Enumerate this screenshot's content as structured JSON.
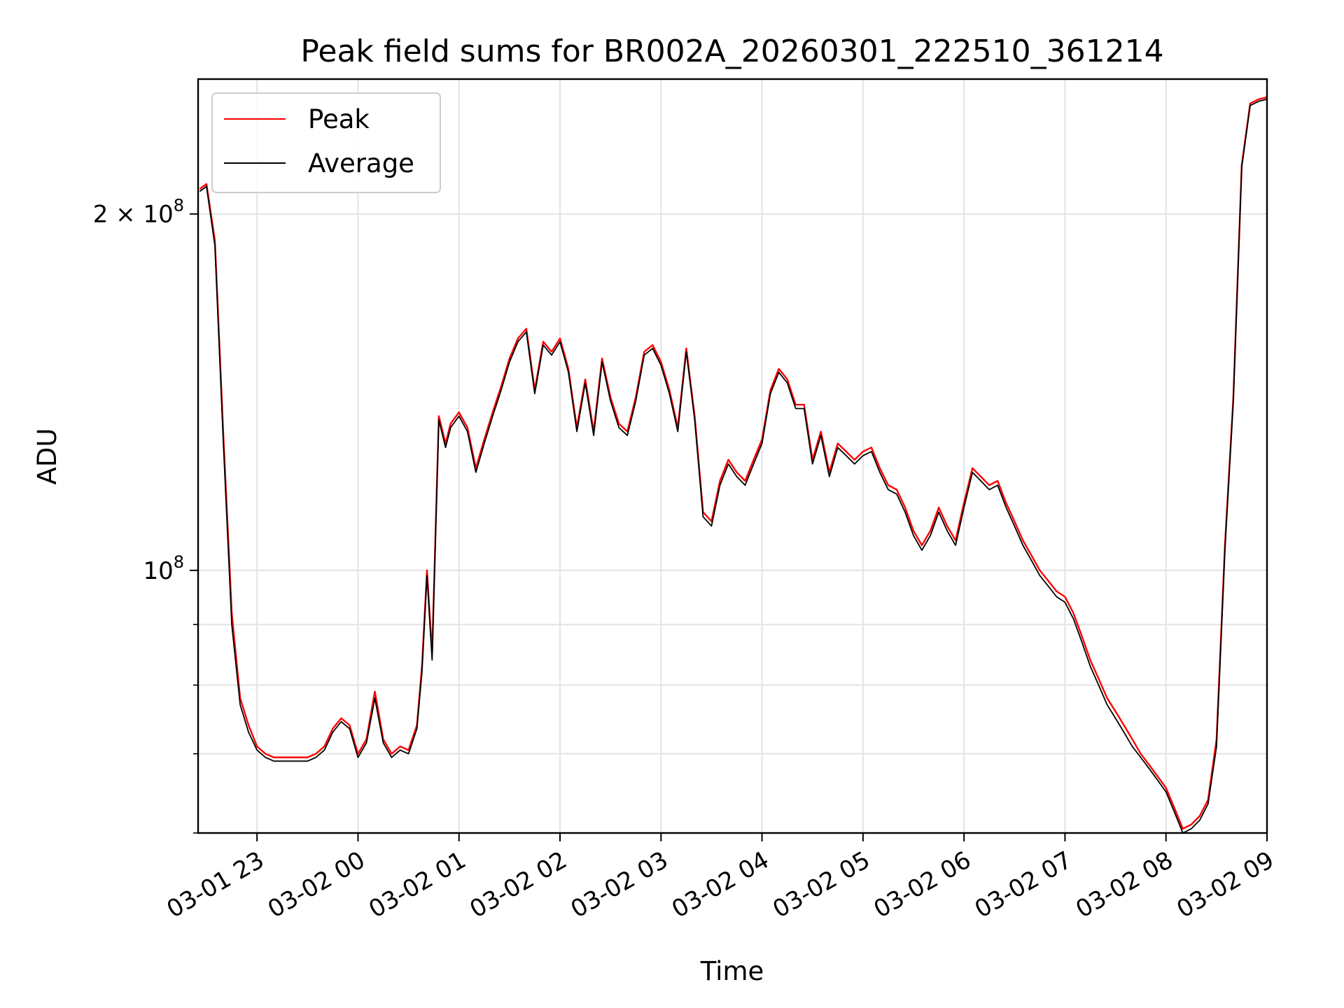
{
  "chart_data": {
    "type": "line",
    "title": "Peak field sums for BR002A_20260301_222510_361214",
    "xlabel": "Time",
    "ylabel": "ADU",
    "y_scale": "log",
    "ylim": [
      60000000,
      260000000
    ],
    "xlim": [
      "2026-03-01 22:25",
      "2026-03-02 09:00"
    ],
    "x_ticks": [
      {
        "x": "2026-03-01 23:00",
        "label": "03-01 23"
      },
      {
        "x": "2026-03-02 00:00",
        "label": "03-02 00"
      },
      {
        "x": "2026-03-02 01:00",
        "label": "03-02 01"
      },
      {
        "x": "2026-03-02 02:00",
        "label": "03-02 02"
      },
      {
        "x": "2026-03-02 03:00",
        "label": "03-02 03"
      },
      {
        "x": "2026-03-02 04:00",
        "label": "03-02 04"
      },
      {
        "x": "2026-03-02 05:00",
        "label": "03-02 05"
      },
      {
        "x": "2026-03-02 06:00",
        "label": "03-02 06"
      },
      {
        "x": "2026-03-02 07:00",
        "label": "03-02 07"
      },
      {
        "x": "2026-03-02 08:00",
        "label": "03-02 08"
      },
      {
        "x": "2026-03-02 09:00",
        "label": "03-02 09"
      }
    ],
    "y_ticks_major": [
      {
        "value": 100000000,
        "base": "10",
        "exp": "8",
        "mantissa": ""
      },
      {
        "value": 200000000,
        "base": "10",
        "exp": "8",
        "mantissa": "2 × "
      }
    ],
    "y_ticks_minor": [
      60000000,
      70000000,
      80000000,
      90000000
    ],
    "grid": true,
    "legend": {
      "position": "upper-left"
    },
    "series": [
      {
        "name": "Peak",
        "color": "#ff0000",
        "x": [
          "2026-03-01 22:26",
          "2026-03-01 22:30",
          "2026-03-01 22:35",
          "2026-03-01 22:40",
          "2026-03-01 22:45",
          "2026-03-01 22:50",
          "2026-03-01 22:55",
          "2026-03-01 23:00",
          "2026-03-01 23:05",
          "2026-03-01 23:10",
          "2026-03-01 23:15",
          "2026-03-01 23:20",
          "2026-03-01 23:25",
          "2026-03-01 23:30",
          "2026-03-01 23:35",
          "2026-03-01 23:40",
          "2026-03-01 23:45",
          "2026-03-01 23:50",
          "2026-03-01 23:55",
          "2026-03-02 00:00",
          "2026-03-02 00:05",
          "2026-03-02 00:10",
          "2026-03-02 00:15",
          "2026-03-02 00:20",
          "2026-03-02 00:25",
          "2026-03-02 00:30",
          "2026-03-02 00:35",
          "2026-03-02 00:38",
          "2026-03-02 00:41",
          "2026-03-02 00:44",
          "2026-03-02 00:48",
          "2026-03-02 00:52",
          "2026-03-02 00:55",
          "2026-03-02 01:00",
          "2026-03-02 01:05",
          "2026-03-02 01:10",
          "2026-03-02 01:15",
          "2026-03-02 01:20",
          "2026-03-02 01:25",
          "2026-03-02 01:30",
          "2026-03-02 01:35",
          "2026-03-02 01:40",
          "2026-03-02 01:45",
          "2026-03-02 01:50",
          "2026-03-02 01:55",
          "2026-03-02 02:00",
          "2026-03-02 02:05",
          "2026-03-02 02:10",
          "2026-03-02 02:15",
          "2026-03-02 02:20",
          "2026-03-02 02:25",
          "2026-03-02 02:30",
          "2026-03-02 02:35",
          "2026-03-02 02:40",
          "2026-03-02 02:45",
          "2026-03-02 02:50",
          "2026-03-02 02:55",
          "2026-03-02 03:00",
          "2026-03-02 03:05",
          "2026-03-02 03:10",
          "2026-03-02 03:15",
          "2026-03-02 03:20",
          "2026-03-02 03:25",
          "2026-03-02 03:30",
          "2026-03-02 03:35",
          "2026-03-02 03:40",
          "2026-03-02 03:45",
          "2026-03-02 03:50",
          "2026-03-02 03:55",
          "2026-03-02 04:00",
          "2026-03-02 04:05",
          "2026-03-02 04:10",
          "2026-03-02 04:15",
          "2026-03-02 04:20",
          "2026-03-02 04:25",
          "2026-03-02 04:30",
          "2026-03-02 04:35",
          "2026-03-02 04:40",
          "2026-03-02 04:45",
          "2026-03-02 04:50",
          "2026-03-02 04:55",
          "2026-03-02 05:00",
          "2026-03-02 05:05",
          "2026-03-02 05:10",
          "2026-03-02 05:15",
          "2026-03-02 05:20",
          "2026-03-02 05:25",
          "2026-03-02 05:30",
          "2026-03-02 05:35",
          "2026-03-02 05:40",
          "2026-03-02 05:45",
          "2026-03-02 05:50",
          "2026-03-02 05:55",
          "2026-03-02 06:00",
          "2026-03-02 06:05",
          "2026-03-02 06:10",
          "2026-03-02 06:15",
          "2026-03-02 06:20",
          "2026-03-02 06:25",
          "2026-03-02 06:30",
          "2026-03-02 06:35",
          "2026-03-02 06:40",
          "2026-03-02 06:45",
          "2026-03-02 06:50",
          "2026-03-02 06:55",
          "2026-03-02 07:00",
          "2026-03-02 07:05",
          "2026-03-02 07:10",
          "2026-03-02 07:15",
          "2026-03-02 07:20",
          "2026-03-02 07:25",
          "2026-03-02 07:30",
          "2026-03-02 07:35",
          "2026-03-02 07:40",
          "2026-03-02 07:45",
          "2026-03-02 07:50",
          "2026-03-02 07:55",
          "2026-03-02 08:00",
          "2026-03-02 08:05",
          "2026-03-02 08:10",
          "2026-03-02 08:15",
          "2026-03-02 08:20",
          "2026-03-02 08:25",
          "2026-03-02 08:30",
          "2026-03-02 08:35",
          "2026-03-02 08:40",
          "2026-03-02 08:45",
          "2026-03-02 08:50",
          "2026-03-02 08:55",
          "2026-03-02 09:00"
        ],
        "values": [
          210000000,
          212000000,
          190000000,
          130000000,
          92000000,
          78000000,
          74000000,
          71000000,
          70000000,
          69500000,
          69500000,
          69500000,
          69500000,
          69500000,
          70000000,
          71000000,
          73500000,
          75000000,
          74000000,
          70000000,
          72000000,
          79000000,
          72000000,
          70000000,
          71000000,
          70500000,
          74000000,
          83000000,
          100000000,
          85000000,
          135000000,
          128000000,
          133000000,
          136000000,
          132000000,
          122000000,
          129000000,
          136000000,
          143000000,
          151000000,
          157000000,
          160000000,
          142000000,
          156000000,
          153000000,
          157000000,
          148000000,
          132000000,
          145000000,
          131000000,
          151000000,
          140000000,
          133000000,
          131000000,
          140000000,
          153000000,
          155000000,
          150000000,
          142000000,
          132000000,
          154000000,
          135000000,
          112000000,
          110000000,
          119000000,
          124000000,
          121000000,
          119000000,
          124000000,
          129000000,
          142000000,
          148000000,
          145000000,
          138000000,
          138000000,
          124000000,
          131000000,
          121000000,
          128000000,
          126000000,
          124000000,
          126000000,
          127000000,
          122000000,
          118000000,
          117000000,
          113000000,
          108000000,
          105000000,
          108000000,
          113000000,
          109000000,
          106000000,
          114000000,
          122000000,
          120000000,
          118000000,
          119000000,
          114000000,
          110000000,
          106000000,
          103000000,
          100000000,
          98000000,
          96000000,
          95000000,
          92000000,
          88000000,
          84000000,
          81000000,
          78000000,
          76000000,
          74000000,
          72000000,
          70000000,
          68500000,
          67000000,
          65500000,
          63000000,
          60500000,
          61000000,
          62000000,
          64000000,
          72000000,
          105000000,
          140000000,
          220000000,
          248000000,
          250000000,
          251000000
        ]
      },
      {
        "name": "Average",
        "color": "#000000",
        "x": [
          "2026-03-01 22:26",
          "2026-03-01 22:30",
          "2026-03-01 22:35",
          "2026-03-01 22:40",
          "2026-03-01 22:45",
          "2026-03-01 22:50",
          "2026-03-01 22:55",
          "2026-03-01 23:00",
          "2026-03-01 23:05",
          "2026-03-01 23:10",
          "2026-03-01 23:15",
          "2026-03-01 23:20",
          "2026-03-01 23:25",
          "2026-03-01 23:30",
          "2026-03-01 23:35",
          "2026-03-01 23:40",
          "2026-03-01 23:45",
          "2026-03-01 23:50",
          "2026-03-01 23:55",
          "2026-03-02 00:00",
          "2026-03-02 00:05",
          "2026-03-02 00:10",
          "2026-03-02 00:15",
          "2026-03-02 00:20",
          "2026-03-02 00:25",
          "2026-03-02 00:30",
          "2026-03-02 00:35",
          "2026-03-02 00:38",
          "2026-03-02 00:41",
          "2026-03-02 00:44",
          "2026-03-02 00:48",
          "2026-03-02 00:52",
          "2026-03-02 00:55",
          "2026-03-02 01:00",
          "2026-03-02 01:05",
          "2026-03-02 01:10",
          "2026-03-02 01:15",
          "2026-03-02 01:20",
          "2026-03-02 01:25",
          "2026-03-02 01:30",
          "2026-03-02 01:35",
          "2026-03-02 01:40",
          "2026-03-02 01:45",
          "2026-03-02 01:50",
          "2026-03-02 01:55",
          "2026-03-02 02:00",
          "2026-03-02 02:05",
          "2026-03-02 02:10",
          "2026-03-02 02:15",
          "2026-03-02 02:20",
          "2026-03-02 02:25",
          "2026-03-02 02:30",
          "2026-03-02 02:35",
          "2026-03-02 02:40",
          "2026-03-02 02:45",
          "2026-03-02 02:50",
          "2026-03-02 02:55",
          "2026-03-02 03:00",
          "2026-03-02 03:05",
          "2026-03-02 03:10",
          "2026-03-02 03:15",
          "2026-03-02 03:20",
          "2026-03-02 03:25",
          "2026-03-02 03:30",
          "2026-03-02 03:35",
          "2026-03-02 03:40",
          "2026-03-02 03:45",
          "2026-03-02 03:50",
          "2026-03-02 03:55",
          "2026-03-02 04:00",
          "2026-03-02 04:05",
          "2026-03-02 04:10",
          "2026-03-02 04:15",
          "2026-03-02 04:20",
          "2026-03-02 04:25",
          "2026-03-02 04:30",
          "2026-03-02 04:35",
          "2026-03-02 04:40",
          "2026-03-02 04:45",
          "2026-03-02 04:50",
          "2026-03-02 04:55",
          "2026-03-02 05:00",
          "2026-03-02 05:05",
          "2026-03-02 05:10",
          "2026-03-02 05:15",
          "2026-03-02 05:20",
          "2026-03-02 05:25",
          "2026-03-02 05:30",
          "2026-03-02 05:35",
          "2026-03-02 05:40",
          "2026-03-02 05:45",
          "2026-03-02 05:50",
          "2026-03-02 05:55",
          "2026-03-02 06:00",
          "2026-03-02 06:05",
          "2026-03-02 06:10",
          "2026-03-02 06:15",
          "2026-03-02 06:20",
          "2026-03-02 06:25",
          "2026-03-02 06:30",
          "2026-03-02 06:35",
          "2026-03-02 06:40",
          "2026-03-02 06:45",
          "2026-03-02 06:50",
          "2026-03-02 06:55",
          "2026-03-02 07:00",
          "2026-03-02 07:05",
          "2026-03-02 07:10",
          "2026-03-02 07:15",
          "2026-03-02 07:20",
          "2026-03-02 07:25",
          "2026-03-02 07:30",
          "2026-03-02 07:35",
          "2026-03-02 07:40",
          "2026-03-02 07:45",
          "2026-03-02 07:50",
          "2026-03-02 07:55",
          "2026-03-02 08:00",
          "2026-03-02 08:05",
          "2026-03-02 08:10",
          "2026-03-02 08:15",
          "2026-03-02 08:20",
          "2026-03-02 08:25",
          "2026-03-02 08:30",
          "2026-03-02 08:35",
          "2026-03-02 08:40",
          "2026-03-02 08:45",
          "2026-03-02 08:50",
          "2026-03-02 08:55",
          "2026-03-02 09:00"
        ],
        "values": [
          209000000,
          211000000,
          188000000,
          128000000,
          90000000,
          77000000,
          73000000,
          70500000,
          69500000,
          69000000,
          69000000,
          69000000,
          69000000,
          69000000,
          69500000,
          70500000,
          73000000,
          74500000,
          73500000,
          69500000,
          71500000,
          78000000,
          71500000,
          69500000,
          70500000,
          70000000,
          73500000,
          82000000,
          99000000,
          84000000,
          134000000,
          127000000,
          132000000,
          135000000,
          131000000,
          121000000,
          128000000,
          135000000,
          142000000,
          150000000,
          156000000,
          159000000,
          141000000,
          155000000,
          152000000,
          156000000,
          147000000,
          131000000,
          144000000,
          130000000,
          150000000,
          139000000,
          132000000,
          130000000,
          139000000,
          152000000,
          154000000,
          149000000,
          141000000,
          131000000,
          153000000,
          134000000,
          111000000,
          109000000,
          118000000,
          123000000,
          120000000,
          118000000,
          123000000,
          128000000,
          141000000,
          147000000,
          144000000,
          137000000,
          137000000,
          123000000,
          130000000,
          120000000,
          127000000,
          125000000,
          123000000,
          125000000,
          126000000,
          121000000,
          117000000,
          116000000,
          112000000,
          107000000,
          104000000,
          107000000,
          112000000,
          108000000,
          105000000,
          113000000,
          121000000,
          119000000,
          117000000,
          118000000,
          113000000,
          109000000,
          105000000,
          102000000,
          99000000,
          97000000,
          95000000,
          94000000,
          91000000,
          87000000,
          83000000,
          80000000,
          77000000,
          75000000,
          73000000,
          71000000,
          69500000,
          68000000,
          66500000,
          65000000,
          62500000,
          60000000,
          60500000,
          61500000,
          63500000,
          71000000,
          104000000,
          139000000,
          219000000,
          247000000,
          249000000,
          250000000
        ]
      }
    ]
  }
}
